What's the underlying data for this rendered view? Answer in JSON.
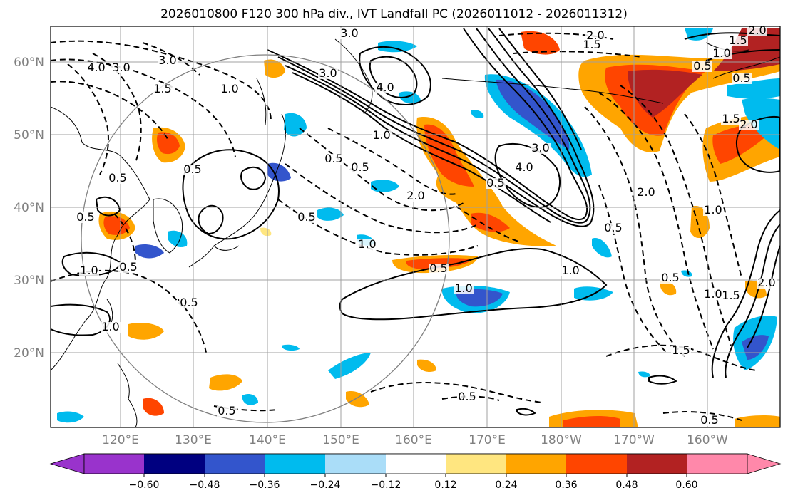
{
  "title": "2026010800 F120 300 hPa div., IVT Landfall PC (2026011012 - 2026011312)",
  "map": {
    "lat_labels": [
      "60°N",
      "50°N",
      "40°N",
      "30°N",
      "20°N"
    ],
    "lon_labels": [
      "120°E",
      "130°E",
      "140°E",
      "150°E",
      "160°E",
      "170°E",
      "180°W",
      "170°W",
      "160°W"
    ],
    "contour_labels": [
      "3.0",
      "3.0",
      "4.0",
      "3.0",
      "3.0",
      "1.5",
      "1.0",
      "2.0",
      "1.5",
      "1.5",
      "2.0",
      "1.0",
      "0.5",
      "0.5",
      "0.5",
      "4.0",
      "3.0",
      "4.0",
      "1.0",
      "2.0",
      "0.5",
      "0.5",
      "1.0",
      "0.5",
      "0.5",
      "0.5",
      "2.0",
      "0.5",
      "1.0",
      "0.5",
      "1.5",
      "2.0",
      "1.5",
      "1.0",
      "1.0",
      "0.5",
      "1.0",
      "1.5",
      "0.5",
      "0.5",
      "0.5",
      "1.0",
      "1.0",
      "0.5",
      "0.5",
      "0.5",
      "2.0"
    ],
    "colors": {
      "contour": "#000000",
      "grid": "#a0a0a0",
      "circle": "#808080",
      "coast": "#000000"
    }
  },
  "colorbar": {
    "ticks": [
      "−0.60",
      "−0.48",
      "−0.36",
      "−0.24",
      "−0.12",
      "0.12",
      "0.24",
      "0.36",
      "0.48",
      "0.60"
    ],
    "colors": [
      "#9933cc",
      "#000080",
      "#3355cc",
      "#00bbee",
      "#aaddf8",
      "#ffffff",
      "#ffe680",
      "#ffa500",
      "#ff4500",
      "#b22222",
      "#ff88aa"
    ]
  }
}
